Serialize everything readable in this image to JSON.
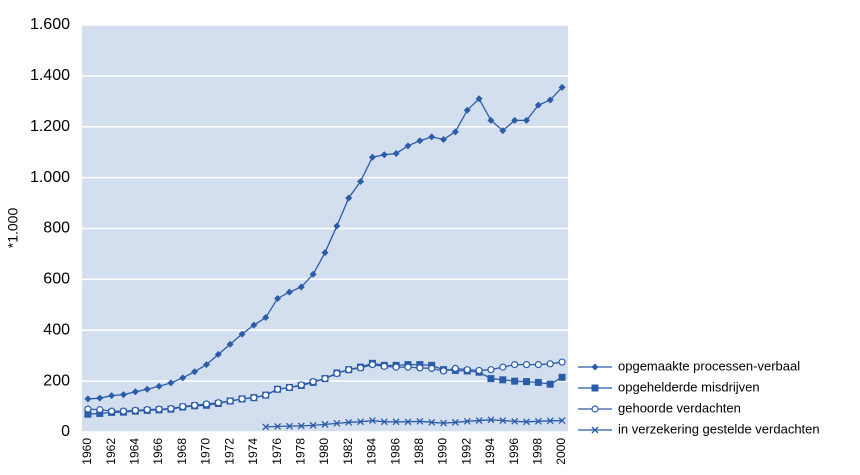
{
  "chart_data": {
    "type": "line",
    "y_label": "*1.000",
    "categories": [
      "1960",
      null,
      "1962",
      null,
      "1964",
      null,
      "1966",
      null,
      "1968",
      null,
      "1970",
      null,
      "1972",
      null,
      "1974",
      null,
      "1976",
      null,
      "1978",
      null,
      "1980",
      null,
      "1982",
      null,
      "1984",
      null,
      "1986",
      null,
      "1988",
      null,
      "1990",
      null,
      "1992",
      null,
      "1994",
      null,
      "1996",
      null,
      "1998",
      null,
      "2000"
    ],
    "ylim": [
      0,
      1600
    ],
    "yticks": [
      0,
      200,
      400,
      600,
      800,
      {
        "value": 1000,
        "label": "1.000"
      },
      {
        "value": 1200,
        "label": "1.200"
      },
      {
        "value": 1400,
        "label": "1.400"
      },
      {
        "value": 1600,
        "label": "1.600"
      }
    ],
    "grid": true,
    "legend": "bottom right",
    "series": [
      {
        "name": "opgemaakte processen-verbaal",
        "color": "#2b5ca8",
        "marker": "diamond",
        "values": [
          130,
          133,
          143,
          147,
          158,
          168,
          180,
          193,
          213,
          237,
          265,
          305,
          345,
          385,
          420,
          450,
          525,
          550,
          570,
          620,
          705,
          810,
          920,
          985,
          1080,
          1090,
          1095,
          1125,
          1145,
          1160,
          1150,
          1180,
          1265,
          1310,
          1225,
          1185,
          1225,
          1225,
          1285,
          1305,
          1355
        ]
      },
      {
        "name": "opgehelderde misdrijven",
        "color": "#2b5ca8",
        "marker": "square",
        "values": [
          70,
          73,
          77,
          78,
          82,
          85,
          87,
          90,
          98,
          103,
          105,
          112,
          122,
          130,
          135,
          145,
          168,
          175,
          183,
          195,
          210,
          232,
          245,
          255,
          270,
          262,
          262,
          265,
          265,
          262,
          245,
          242,
          240,
          235,
          210,
          205,
          200,
          198,
          195,
          188,
          215
        ]
      },
      {
        "name": "gehoorde verdachten",
        "color": "#2b5ca8",
        "marker": "circle",
        "values": [
          90,
          88,
          82,
          82,
          85,
          88,
          90,
          92,
          100,
          105,
          110,
          115,
          122,
          130,
          135,
          145,
          168,
          175,
          185,
          198,
          210,
          230,
          245,
          252,
          265,
          258,
          255,
          255,
          252,
          250,
          240,
          250,
          245,
          242,
          245,
          255,
          265,
          265,
          265,
          268,
          275
        ]
      },
      {
        "name": "in verzekering gestelde verdachten",
        "color": "#2b5ca8",
        "marker": "x",
        "values": [
          null,
          null,
          null,
          null,
          null,
          null,
          null,
          null,
          null,
          null,
          null,
          null,
          null,
          null,
          null,
          20,
          22,
          23,
          24,
          26,
          30,
          34,
          38,
          40,
          45,
          40,
          40,
          40,
          42,
          38,
          35,
          38,
          42,
          45,
          48,
          45,
          42,
          40,
          42,
          44,
          45
        ]
      }
    ]
  }
}
